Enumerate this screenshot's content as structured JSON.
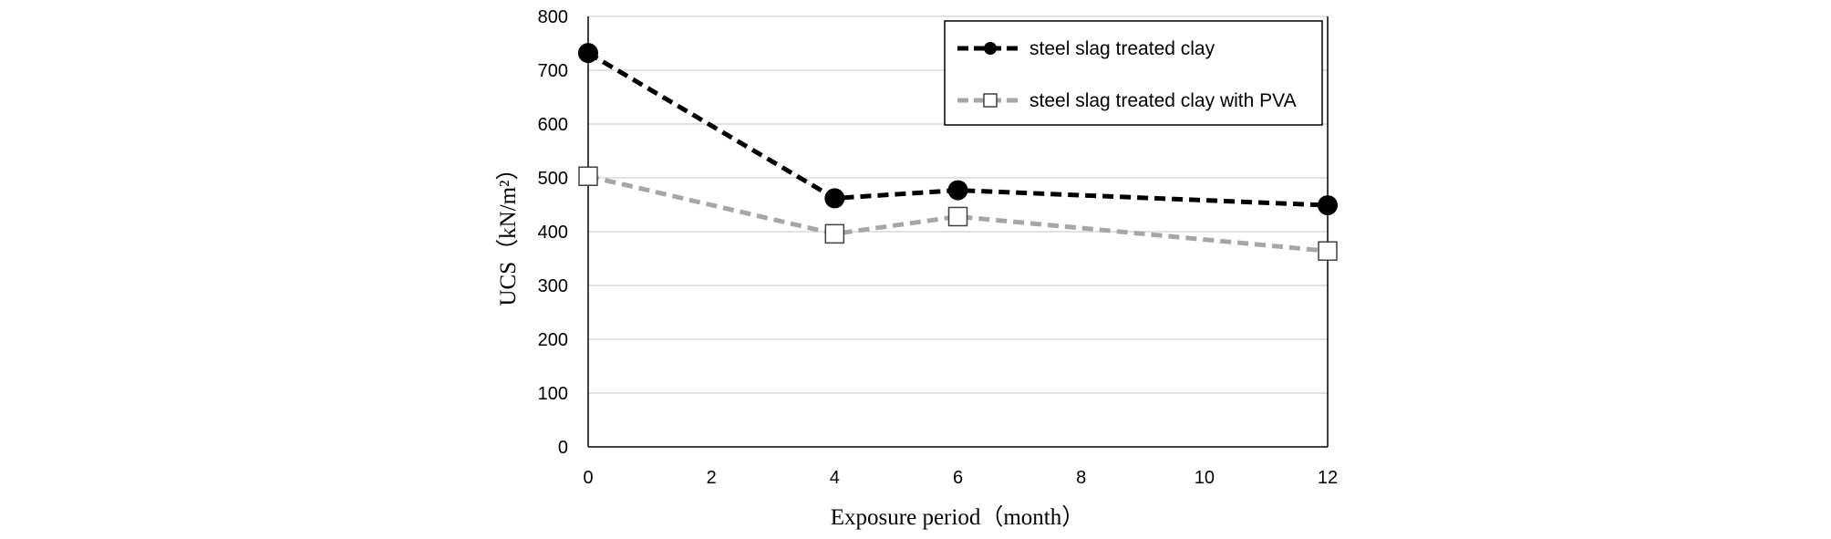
{
  "chart_data": {
    "type": "line",
    "xlabel": "Exposure period（month）",
    "ylabel": "UCS（kN/m²）",
    "xlim": [
      0,
      12
    ],
    "ylim": [
      0,
      800
    ],
    "x_ticks": [
      0,
      2,
      4,
      6,
      8,
      10,
      12
    ],
    "y_ticks": [
      0,
      100,
      200,
      300,
      400,
      500,
      600,
      700,
      800
    ],
    "grid": "horizontal",
    "legend_position": "top-right",
    "series": [
      {
        "name": "steel slag treated clay",
        "x": [
          0,
          4,
          6,
          12
        ],
        "y": [
          732,
          462,
          477,
          449
        ],
        "color": "#000000",
        "marker": "filled-circle",
        "line_style": "dashed"
      },
      {
        "name": "steel slag treated clay with PVA",
        "x": [
          0,
          4,
          6,
          12
        ],
        "y": [
          503,
          396,
          428,
          364
        ],
        "color": "#a6a6a6",
        "marker": "open-square",
        "line_style": "dashed"
      }
    ]
  }
}
